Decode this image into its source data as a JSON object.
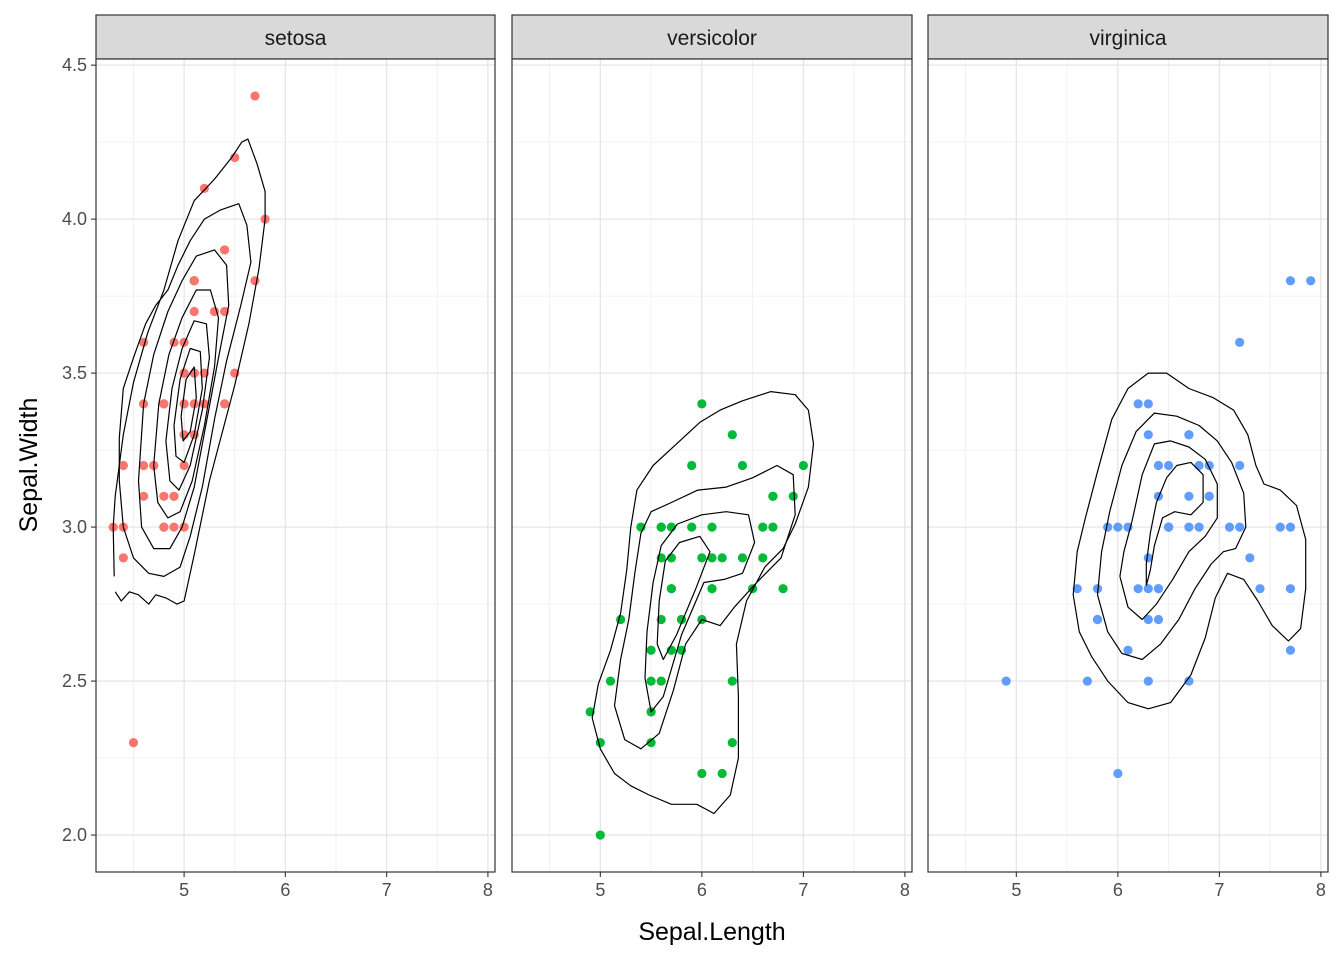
{
  "chart_data": {
    "type": "scatter",
    "title": "",
    "xlabel": "Sepal.Length",
    "ylabel": "Sepal.Width",
    "xlim": [
      4.13,
      8.07
    ],
    "ylim": [
      1.88,
      4.52
    ],
    "x_ticks": [
      5,
      6,
      7,
      8
    ],
    "y_ticks": [
      2.0,
      2.5,
      3.0,
      3.5,
      4.0,
      4.5
    ],
    "x_tick_labels": [
      "5",
      "6",
      "7",
      "8"
    ],
    "y_tick_labels": [
      "2.0",
      "2.5",
      "3.0",
      "3.5",
      "4.0",
      "4.5"
    ],
    "grid": true,
    "legend": "none",
    "overlay": "2d density contour lines (black)",
    "panels": [
      {
        "name": "setosa",
        "color": "#F8766D",
        "points": [
          [
            5.1,
            3.5
          ],
          [
            4.9,
            3.0
          ],
          [
            4.7,
            3.2
          ],
          [
            4.6,
            3.1
          ],
          [
            5.0,
            3.6
          ],
          [
            5.4,
            3.9
          ],
          [
            4.6,
            3.4
          ],
          [
            5.0,
            3.4
          ],
          [
            4.4,
            2.9
          ],
          [
            4.9,
            3.1
          ],
          [
            5.4,
            3.7
          ],
          [
            4.8,
            3.4
          ],
          [
            4.8,
            3.0
          ],
          [
            4.3,
            3.0
          ],
          [
            5.8,
            4.0
          ],
          [
            5.7,
            4.4
          ],
          [
            5.4,
            3.9
          ],
          [
            5.1,
            3.5
          ],
          [
            5.7,
            3.8
          ],
          [
            5.1,
            3.8
          ],
          [
            5.4,
            3.4
          ],
          [
            5.1,
            3.7
          ],
          [
            4.6,
            3.6
          ],
          [
            5.1,
            3.3
          ],
          [
            4.8,
            3.4
          ],
          [
            5.0,
            3.0
          ],
          [
            5.0,
            3.4
          ],
          [
            5.2,
            3.5
          ],
          [
            5.2,
            3.4
          ],
          [
            4.7,
            3.2
          ],
          [
            4.8,
            3.1
          ],
          [
            5.4,
            3.4
          ],
          [
            5.2,
            4.1
          ],
          [
            5.5,
            4.2
          ],
          [
            4.9,
            3.1
          ],
          [
            5.0,
            3.2
          ],
          [
            5.5,
            3.5
          ],
          [
            4.9,
            3.6
          ],
          [
            4.4,
            3.0
          ],
          [
            5.1,
            3.4
          ],
          [
            5.0,
            3.5
          ],
          [
            4.5,
            2.3
          ],
          [
            4.4,
            3.2
          ],
          [
            5.0,
            3.5
          ],
          [
            5.1,
            3.8
          ],
          [
            4.8,
            3.0
          ],
          [
            5.1,
            3.8
          ],
          [
            4.6,
            3.2
          ],
          [
            5.3,
            3.7
          ],
          [
            5.0,
            3.3
          ]
        ]
      },
      {
        "name": "versicolor",
        "color": "#00BA38",
        "points": [
          [
            7.0,
            3.2
          ],
          [
            6.4,
            3.2
          ],
          [
            6.9,
            3.1
          ],
          [
            5.5,
            2.3
          ],
          [
            6.5,
            2.8
          ],
          [
            5.7,
            2.8
          ],
          [
            6.3,
            3.3
          ],
          [
            4.9,
            2.4
          ],
          [
            6.6,
            2.9
          ],
          [
            5.2,
            2.7
          ],
          [
            5.0,
            2.0
          ],
          [
            5.9,
            3.0
          ],
          [
            6.0,
            2.2
          ],
          [
            6.1,
            2.9
          ],
          [
            5.6,
            2.9
          ],
          [
            6.7,
            3.1
          ],
          [
            5.6,
            3.0
          ],
          [
            5.8,
            2.7
          ],
          [
            6.2,
            2.2
          ],
          [
            5.6,
            2.5
          ],
          [
            5.9,
            3.2
          ],
          [
            6.1,
            2.8
          ],
          [
            6.3,
            2.5
          ],
          [
            6.1,
            2.8
          ],
          [
            6.4,
            2.9
          ],
          [
            6.6,
            3.0
          ],
          [
            6.8,
            2.8
          ],
          [
            6.7,
            3.0
          ],
          [
            6.0,
            2.9
          ],
          [
            5.7,
            2.6
          ],
          [
            5.5,
            2.4
          ],
          [
            5.5,
            2.4
          ],
          [
            5.8,
            2.7
          ],
          [
            6.0,
            2.7
          ],
          [
            5.4,
            3.0
          ],
          [
            6.0,
            3.4
          ],
          [
            6.7,
            3.1
          ],
          [
            6.3,
            2.3
          ],
          [
            5.6,
            3.0
          ],
          [
            5.5,
            2.5
          ],
          [
            5.5,
            2.6
          ],
          [
            6.1,
            3.0
          ],
          [
            5.8,
            2.6
          ],
          [
            5.0,
            2.3
          ],
          [
            5.6,
            2.7
          ],
          [
            5.7,
            3.0
          ],
          [
            5.7,
            2.9
          ],
          [
            6.2,
            2.9
          ],
          [
            5.1,
            2.5
          ],
          [
            5.7,
            2.8
          ]
        ]
      },
      {
        "name": "virginica",
        "color": "#619CFF",
        "points": [
          [
            6.3,
            3.3
          ],
          [
            5.8,
            2.7
          ],
          [
            7.1,
            3.0
          ],
          [
            6.3,
            2.9
          ],
          [
            6.5,
            3.0
          ],
          [
            7.6,
            3.0
          ],
          [
            4.9,
            2.5
          ],
          [
            7.3,
            2.9
          ],
          [
            6.7,
            2.5
          ],
          [
            7.2,
            3.6
          ],
          [
            6.5,
            3.2
          ],
          [
            6.4,
            2.7
          ],
          [
            6.8,
            3.0
          ],
          [
            5.7,
            2.5
          ],
          [
            5.8,
            2.8
          ],
          [
            6.4,
            3.2
          ],
          [
            6.5,
            3.0
          ],
          [
            7.7,
            3.8
          ],
          [
            7.7,
            2.6
          ],
          [
            6.0,
            2.2
          ],
          [
            6.9,
            3.2
          ],
          [
            5.6,
            2.8
          ],
          [
            7.7,
            2.8
          ],
          [
            6.3,
            2.7
          ],
          [
            6.7,
            3.3
          ],
          [
            7.2,
            3.2
          ],
          [
            6.2,
            2.8
          ],
          [
            6.1,
            3.0
          ],
          [
            6.4,
            2.8
          ],
          [
            7.2,
            3.0
          ],
          [
            7.4,
            2.8
          ],
          [
            7.9,
            3.8
          ],
          [
            6.4,
            2.8
          ],
          [
            6.3,
            2.8
          ],
          [
            6.1,
            2.6
          ],
          [
            7.7,
            3.0
          ],
          [
            6.3,
            3.4
          ],
          [
            6.4,
            3.1
          ],
          [
            6.0,
            3.0
          ],
          [
            6.9,
            3.1
          ],
          [
            6.7,
            3.1
          ],
          [
            6.9,
            3.1
          ],
          [
            5.8,
            2.7
          ],
          [
            6.8,
            3.2
          ],
          [
            6.7,
            3.3
          ],
          [
            6.7,
            3.0
          ],
          [
            6.3,
            2.5
          ],
          [
            6.5,
            3.0
          ],
          [
            6.2,
            3.4
          ],
          [
            5.9,
            3.0
          ]
        ]
      }
    ]
  }
}
